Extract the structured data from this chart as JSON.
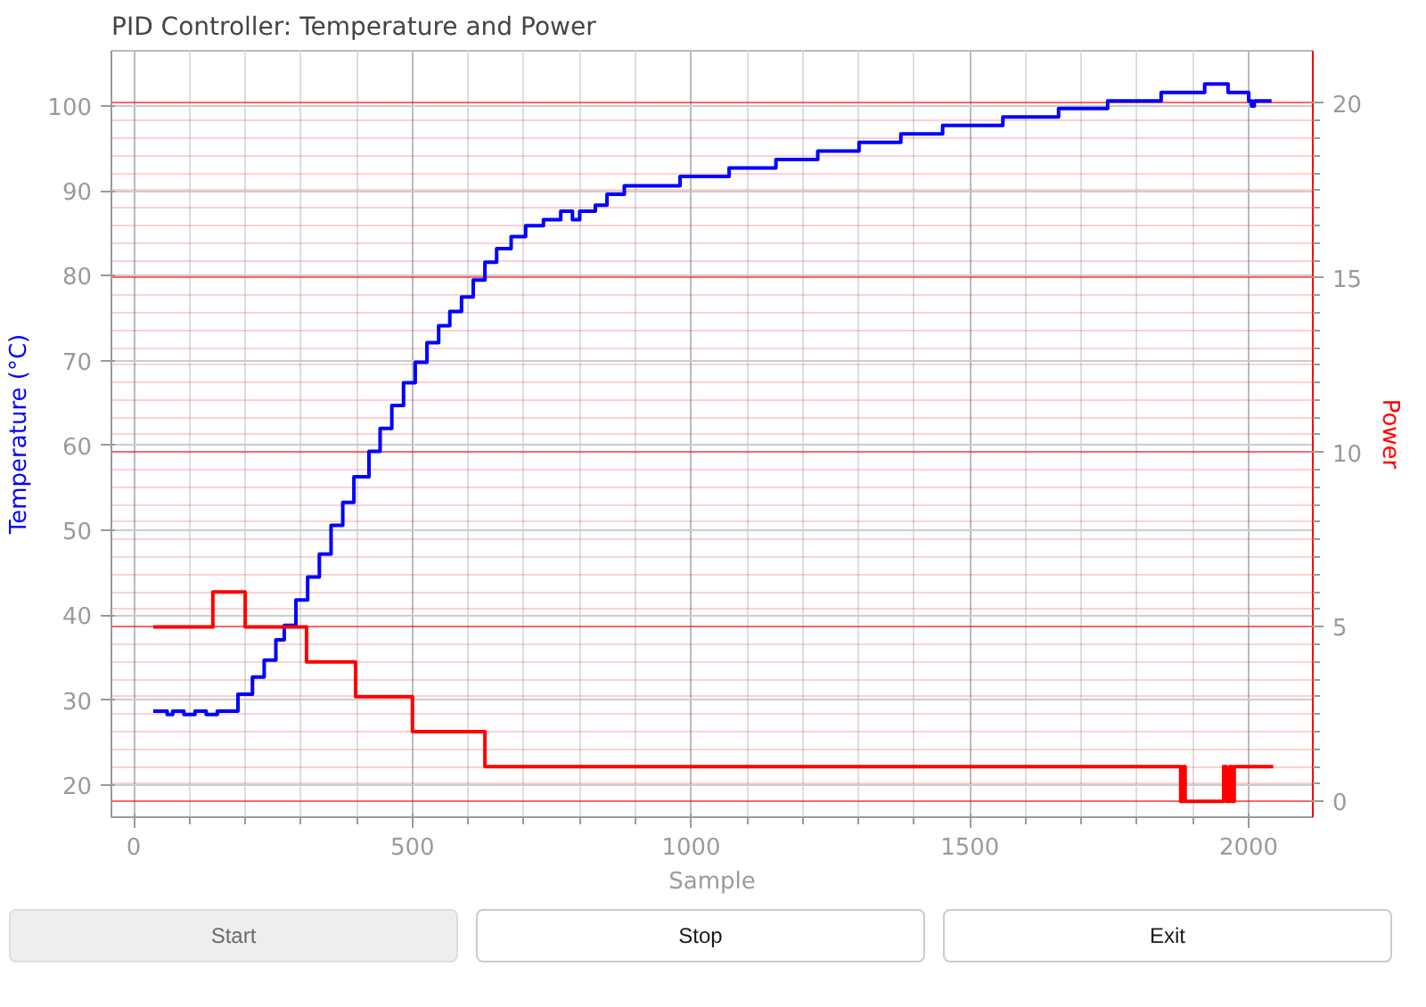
{
  "chart_data": {
    "type": "step",
    "title": "PID Controller: Temperature and Power",
    "xlabel": "Sample",
    "ylabel": "Temperature (°C)",
    "y2label": "Power",
    "xlim": [
      -40,
      2115
    ],
    "xticks": [
      0,
      500,
      1000,
      1500,
      2000
    ],
    "ylim": [
      16.2,
      106.5
    ],
    "yticks": [
      20,
      30,
      40,
      50,
      60,
      70,
      80,
      90,
      100
    ],
    "y2lim": [
      -0.45,
      21.5
    ],
    "y2ticks": [
      0,
      5,
      10,
      15,
      20
    ],
    "grid": true,
    "marker": "none",
    "line_style": "solid",
    "series": [
      {
        "color": "#0000ff",
        "x": [
          35,
          60,
          70,
          90,
          110,
          130,
          150,
          171,
          187,
          213,
          234,
          255,
          270,
          291,
          312,
          333,
          354,
          375,
          395,
          422,
          442,
          463,
          484,
          505,
          526,
          547,
          567,
          588,
          609,
          630,
          651,
          677,
          703,
          735,
          766,
          787,
          800,
          828,
          849,
          880,
          980,
          1068,
          1152,
          1227,
          1301,
          1376,
          1451,
          1559,
          1659,
          1747,
          1843,
          1921,
          1963,
          2000,
          2005,
          2010,
          2041
        ],
        "values": [
          28.7,
          28.3,
          28.7,
          28.3,
          28.7,
          28.3,
          28.7,
          28.7,
          30.7,
          32.7,
          34.7,
          37.1,
          38.8,
          41.8,
          44.5,
          47.2,
          50.6,
          53.3,
          56.3,
          59.3,
          62.0,
          64.7,
          67.4,
          69.8,
          72.1,
          74.1,
          75.8,
          77.5,
          79.5,
          81.6,
          83.2,
          84.6,
          85.9,
          86.6,
          87.6,
          86.6,
          87.6,
          88.3,
          89.6,
          90.6,
          91.7,
          92.7,
          93.7,
          94.7,
          95.7,
          96.7,
          97.7,
          98.7,
          99.7,
          100.6,
          101.6,
          102.6,
          101.6,
          100.6,
          100.0,
          100.6,
          100.6
        ]
      },
      {
        "color": "#ff0000",
        "axis": "y2",
        "x": [
          35,
          142,
          200,
          310,
          398,
          500,
          630,
          1878,
          1882,
          1886,
          1955,
          1960,
          1966,
          1970,
          1974,
          2044
        ],
        "values": [
          5,
          6,
          5,
          4,
          3,
          2,
          1,
          0,
          1,
          0,
          1,
          0,
          1,
          0,
          1,
          1
        ]
      }
    ],
    "annotations": [
      "Start",
      "Stop",
      "Exit"
    ]
  }
}
